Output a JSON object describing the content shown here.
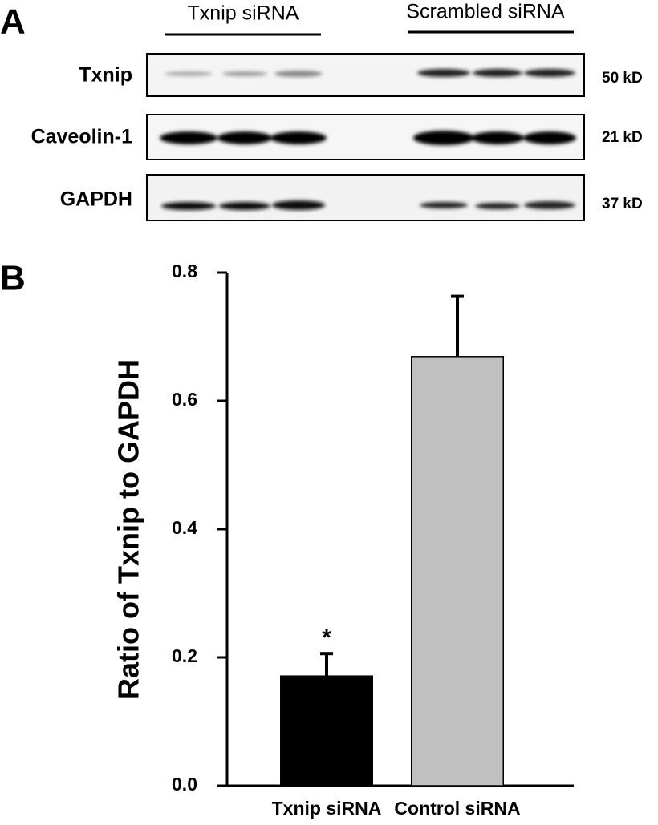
{
  "panel_a": {
    "label": "A",
    "groups": [
      "Txnip siRNA",
      "Scrambled siRNA"
    ],
    "blots": [
      {
        "protein": "Txnip",
        "size": "50 kD"
      },
      {
        "protein": "Caveolin-1",
        "size": "21 kD"
      },
      {
        "protein": "GAPDH",
        "size": "37 kD"
      }
    ]
  },
  "chart_data": {
    "type": "bar",
    "panel_label": "B",
    "ylabel": "Ratio of Txnip to GAPDH",
    "categories": [
      "Txnip siRNA",
      "Control siRNA"
    ],
    "values": [
      0.171,
      0.669
    ],
    "errors": [
      0.035,
      0.094
    ],
    "colors": [
      "#000000",
      "#c0c0c0"
    ],
    "annotation": "*",
    "ylim": [
      0,
      0.8
    ],
    "yticks": [
      {
        "value": 0,
        "label": "0.0"
      },
      0.2,
      0.4,
      0.6,
      0.8
    ]
  }
}
